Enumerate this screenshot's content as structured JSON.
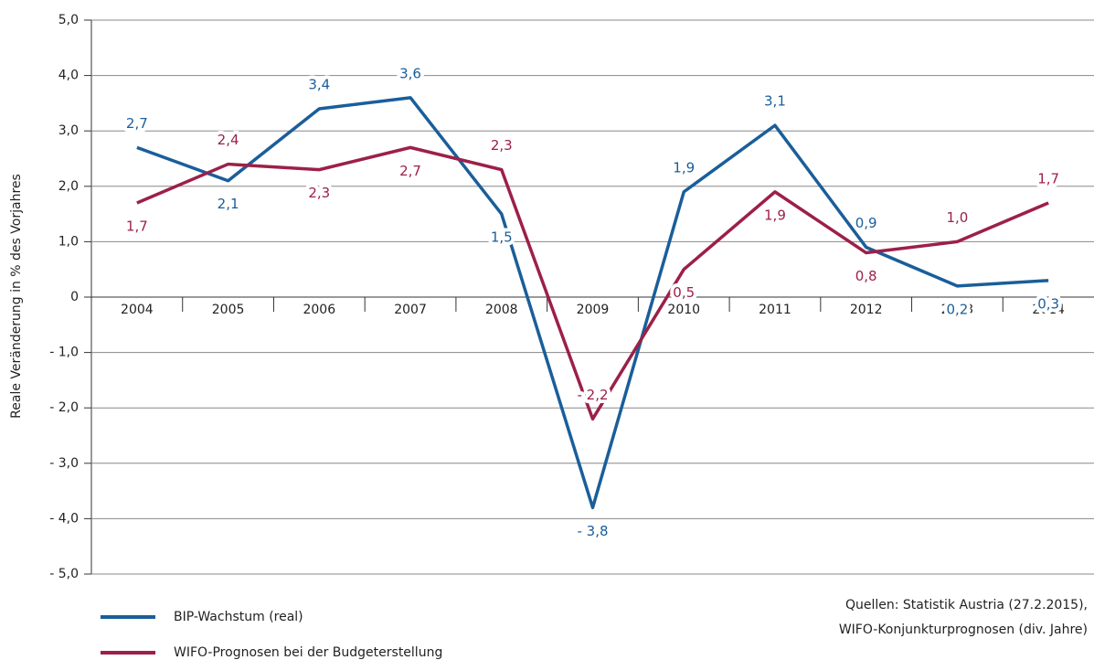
{
  "chart_data": {
    "type": "line",
    "y_axis_label": "Reale Veränderung in % des Vorjahres",
    "categories": [
      "2004",
      "2005",
      "2006",
      "2007",
      "2008",
      "2009",
      "2010",
      "2011",
      "2012",
      "2013",
      "2014"
    ],
    "series": [
      {
        "name": "BIP-Wachstum (real)",
        "color": "#1a5e9a",
        "values": [
          2.7,
          2.1,
          3.4,
          3.6,
          1.5,
          -3.8,
          1.9,
          3.1,
          0.9,
          0.2,
          0.3
        ],
        "value_labels": [
          "2,7",
          "2,1",
          "3,4",
          "3,6",
          "1,5",
          "- 3,8",
          "1,9",
          "3,1",
          "0,9",
          "0,2",
          "0,3"
        ]
      },
      {
        "name": "WIFO-Prognosen bei der Budgeterstellung",
        "color": "#9c2048",
        "values": [
          1.7,
          2.4,
          2.3,
          2.7,
          2.3,
          -2.2,
          0.5,
          1.9,
          0.8,
          1.0,
          1.7
        ],
        "value_labels": [
          "1,7",
          "2,4",
          "2,3",
          "2,7",
          "2,3",
          "- 2,2",
          "0,5",
          "1,9",
          "0,8",
          "1,0",
          "1,7"
        ]
      }
    ],
    "ylim": [
      -5,
      5
    ],
    "yticks": [
      {
        "value": 5,
        "label": "5,0"
      },
      {
        "value": 4,
        "label": "4,0"
      },
      {
        "value": 3,
        "label": "3,0"
      },
      {
        "value": 2,
        "label": "2,0"
      },
      {
        "value": 1,
        "label": "1,0"
      },
      0,
      {
        "value": -1,
        "label": "- 1,0"
      },
      {
        "value": -2,
        "label": "- 2,0"
      },
      {
        "value": -3,
        "label": "- 3,0"
      },
      {
        "value": -4,
        "label": "- 4,0"
      },
      {
        "value": -5,
        "label": "- 5,0"
      }
    ],
    "grid": true,
    "source": [
      "Quellen: Statistik Austria (27.2.2015),",
      "WIFO-Konjunkturprognosen (div. Jahre)"
    ]
  }
}
